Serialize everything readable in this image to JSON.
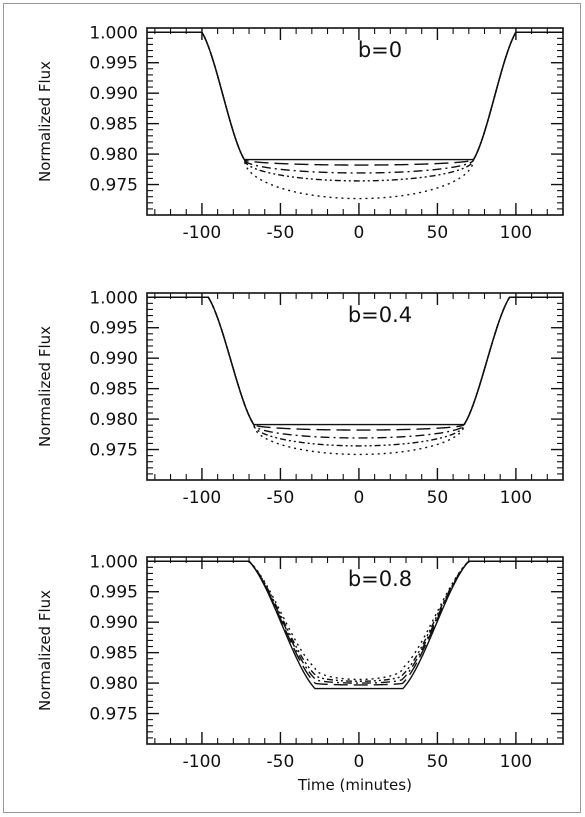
{
  "chart_data": [
    {
      "type": "line",
      "annotation": "b=0",
      "ylabel": "Normalized Flux",
      "xlabel": "",
      "xlim": [
        -135,
        130
      ],
      "ylim": [
        0.97,
        1.0007
      ],
      "xticks": [
        -100,
        -50,
        0,
        50,
        100
      ],
      "xtick_labels": [
        "-100",
        "-50",
        "0",
        "50",
        "100"
      ],
      "yticks": [
        1.0,
        0.995,
        0.99,
        0.985,
        0.98,
        0.975
      ],
      "ytick_labels": [
        "1.000",
        "0.995",
        "0.990",
        "0.985",
        "0.980",
        "0.975"
      ],
      "contact": {
        "t1": 100,
        "t2": 73,
        "ld_scale": 1.0
      },
      "series": [
        {
          "style": "solid",
          "depth_center": 0.0209,
          "depth_edge": 0.0209,
          "values_at_x": {
            "x": [
              -100,
              -73,
              0,
              73,
              100
            ],
            "y": [
              1.0,
              0.9791,
              0.9791,
              0.9791,
              1.0
            ]
          }
        },
        {
          "style": "long-dash",
          "depth_center": 0.0218,
          "depth_edge": 0.0209,
          "values_at_x": {
            "x": [
              -100,
              -73,
              0,
              73,
              100
            ],
            "y": [
              1.0,
              0.9791,
              0.9782,
              0.9791,
              1.0
            ]
          }
        },
        {
          "style": "dash-dot",
          "depth_center": 0.0231,
          "depth_edge": 0.0209,
          "values_at_x": {
            "x": [
              -100,
              -73,
              0,
              73,
              100
            ],
            "y": [
              1.0,
              0.9791,
              0.9769,
              0.9791,
              1.0
            ]
          }
        },
        {
          "style": "dash-dot-dot",
          "depth_center": 0.0244,
          "depth_edge": 0.0209,
          "values_at_x": {
            "x": [
              -100,
              -73,
              0,
              73,
              100
            ],
            "y": [
              1.0,
              0.9791,
              0.9756,
              0.9791,
              1.0
            ]
          }
        },
        {
          "style": "dotted",
          "depth_center": 0.0273,
          "depth_edge": 0.0209,
          "values_at_x": {
            "x": [
              -100,
              -73,
              0,
              73,
              100
            ],
            "y": [
              1.0,
              0.9791,
              0.9727,
              0.9791,
              1.0
            ]
          }
        }
      ]
    },
    {
      "type": "line",
      "annotation": "b=0.4",
      "ylabel": "Normalized Flux",
      "xlabel": "",
      "xlim": [
        -135,
        130
      ],
      "ylim": [
        0.97,
        1.0007
      ],
      "xticks": [
        -100,
        -50,
        0,
        50,
        100
      ],
      "xtick_labels": [
        "-100",
        "-50",
        "0",
        "50",
        "100"
      ],
      "yticks": [
        1.0,
        0.995,
        0.99,
        0.985,
        0.98,
        0.975
      ],
      "ytick_labels": [
        "1.000",
        "0.995",
        "0.990",
        "0.985",
        "0.980",
        "0.975"
      ],
      "contact": {
        "t1": 96,
        "t2": 67,
        "ld_scale": 1.0
      },
      "series": [
        {
          "style": "solid",
          "depth_center": 0.0209,
          "depth_edge": 0.0209,
          "values_at_x": {
            "x": [
              -96,
              -67,
              0,
              67,
              96
            ],
            "y": [
              1.0,
              0.9791,
              0.9791,
              0.9791,
              1.0
            ]
          }
        },
        {
          "style": "long-dash",
          "depth_center": 0.0218,
          "depth_edge": 0.0209,
          "values_at_x": {
            "x": [
              -96,
              -67,
              0,
              67,
              96
            ],
            "y": [
              1.0,
              0.9791,
              0.9782,
              0.9791,
              1.0
            ]
          }
        },
        {
          "style": "dash-dot",
          "depth_center": 0.0231,
          "depth_edge": 0.0209,
          "values_at_x": {
            "x": [
              -96,
              -67,
              0,
              67,
              96
            ],
            "y": [
              1.0,
              0.9791,
              0.9769,
              0.9791,
              1.0
            ]
          }
        },
        {
          "style": "dash-dot-dot",
          "depth_center": 0.0244,
          "depth_edge": 0.0209,
          "values_at_x": {
            "x": [
              -96,
              -67,
              0,
              67,
              96
            ],
            "y": [
              1.0,
              0.9791,
              0.9756,
              0.9791,
              1.0
            ]
          }
        },
        {
          "style": "dotted",
          "depth_center": 0.0258,
          "depth_edge": 0.0209,
          "values_at_x": {
            "x": [
              -96,
              -67,
              0,
              67,
              96
            ],
            "y": [
              1.0,
              0.9791,
              0.9742,
              0.9791,
              1.0
            ]
          }
        }
      ]
    },
    {
      "type": "line",
      "annotation": "b=0.8",
      "ylabel": "Normalized Flux",
      "xlabel": "Time (minutes)",
      "xlim": [
        -135,
        130
      ],
      "ylim": [
        0.97,
        1.0007
      ],
      "xticks": [
        -100,
        -50,
        0,
        50,
        100
      ],
      "xtick_labels": [
        "-100",
        "-50",
        "0",
        "50",
        "100"
      ],
      "yticks": [
        1.0,
        0.995,
        0.99,
        0.985,
        0.98,
        0.975
      ],
      "ytick_labels": [
        "1.000",
        "0.995",
        "0.990",
        "0.985",
        "0.980",
        "0.975"
      ],
      "contact": {
        "t1": 70,
        "t2": 28,
        "ld_scale": 1.0
      },
      "series": [
        {
          "style": "solid",
          "depth_center": 0.0209,
          "depth_edge": 0.0209,
          "values_at_x": {
            "x": [
              -70,
              -28,
              0,
              28,
              70
            ],
            "y": [
              1.0,
              0.9791,
              0.9791,
              0.9791,
              1.0
            ]
          }
        },
        {
          "style": "long-dash",
          "depth_center": 0.0203,
          "depth_edge": 0.02,
          "values_at_x": {
            "x": [
              -70,
              -28,
              0,
              28,
              70
            ],
            "y": [
              1.0,
              0.98,
              0.9797,
              0.98,
              1.0
            ]
          }
        },
        {
          "style": "dash-dot",
          "depth_center": 0.02,
          "depth_edge": 0.0193,
          "values_at_x": {
            "x": [
              -70,
              -28,
              0,
              28,
              70
            ],
            "y": [
              1.0,
              0.9807,
              0.98,
              0.9807,
              1.0
            ]
          }
        },
        {
          "style": "dash-dot-dot",
          "depth_center": 0.0197,
          "depth_edge": 0.0186,
          "values_at_x": {
            "x": [
              -70,
              -28,
              0,
              28,
              70
            ],
            "y": [
              1.0,
              0.9814,
              0.9803,
              0.9814,
              1.0
            ]
          }
        },
        {
          "style": "dotted",
          "depth_center": 0.0194,
          "depth_edge": 0.0175,
          "values_at_x": {
            "x": [
              -70,
              -28,
              0,
              28,
              70
            ],
            "y": [
              1.0,
              0.9825,
              0.9806,
              0.9825,
              1.0
            ]
          }
        }
      ]
    }
  ]
}
